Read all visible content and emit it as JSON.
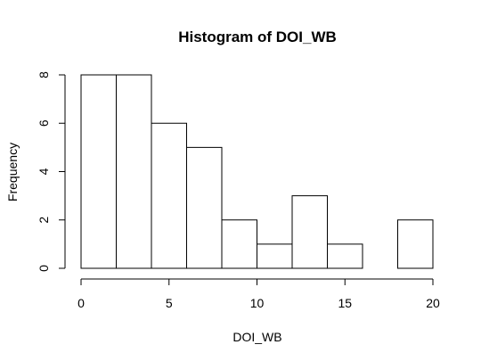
{
  "chart_data": {
    "type": "bar",
    "subtype": "histogram",
    "title": "Histogram of DOI_WB",
    "xlabel": "DOI_WB",
    "ylabel": "Frequency",
    "bins": [
      {
        "from": 0,
        "to": 2,
        "count": 8
      },
      {
        "from": 2,
        "to": 4,
        "count": 8
      },
      {
        "from": 4,
        "to": 6,
        "count": 6
      },
      {
        "from": 6,
        "to": 8,
        "count": 5
      },
      {
        "from": 8,
        "to": 10,
        "count": 2
      },
      {
        "from": 10,
        "to": 12,
        "count": 1
      },
      {
        "from": 12,
        "to": 14,
        "count": 3
      },
      {
        "from": 14,
        "to": 16,
        "count": 1
      },
      {
        "from": 16,
        "to": 18,
        "count": 0
      },
      {
        "from": 18,
        "to": 20,
        "count": 2
      }
    ],
    "xlim": [
      0,
      20
    ],
    "ylim": [
      0,
      8
    ],
    "x_ticks": [
      "0",
      "5",
      "10",
      "15",
      "20"
    ],
    "y_ticks": [
      "0",
      "2",
      "4",
      "6",
      "8"
    ],
    "grid": false,
    "legend": "none",
    "bar_fill": "#ffffff",
    "bar_stroke": "#000000"
  }
}
